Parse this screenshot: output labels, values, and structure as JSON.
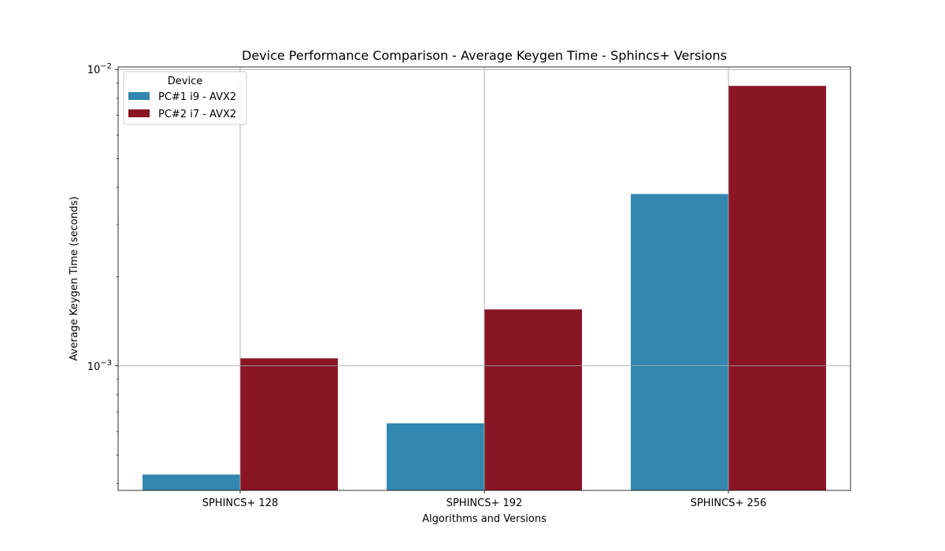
{
  "chart_data": {
    "type": "bar",
    "title": "Device Performance Comparison - Average Keygen Time - Sphincs+ Versions",
    "xlabel": "Algorithms and Versions",
    "ylabel": "Average Keygen Time (seconds)",
    "yscale": "log",
    "ylim": [
      0.00038,
      0.0102
    ],
    "yticks": [
      {
        "value": 0.001,
        "base": "10",
        "exp": "−3"
      },
      {
        "value": 0.01,
        "base": "10",
        "exp": "−2"
      }
    ],
    "categories": [
      "SPHINCS+ 128",
      "SPHINCS+ 192",
      "SPHINCS+ 256"
    ],
    "series": [
      {
        "name": "PC#1 i9 - AVX2",
        "color": "#3288b0",
        "values": [
          0.00043,
          0.00064,
          0.0038
        ]
      },
      {
        "name": "PC#2 i7 - AVX2",
        "color": "#8a1524",
        "values": [
          0.00106,
          0.00155,
          0.0088
        ]
      }
    ],
    "legend": {
      "title": "Device",
      "placement": "top-left"
    },
    "grid": true
  }
}
